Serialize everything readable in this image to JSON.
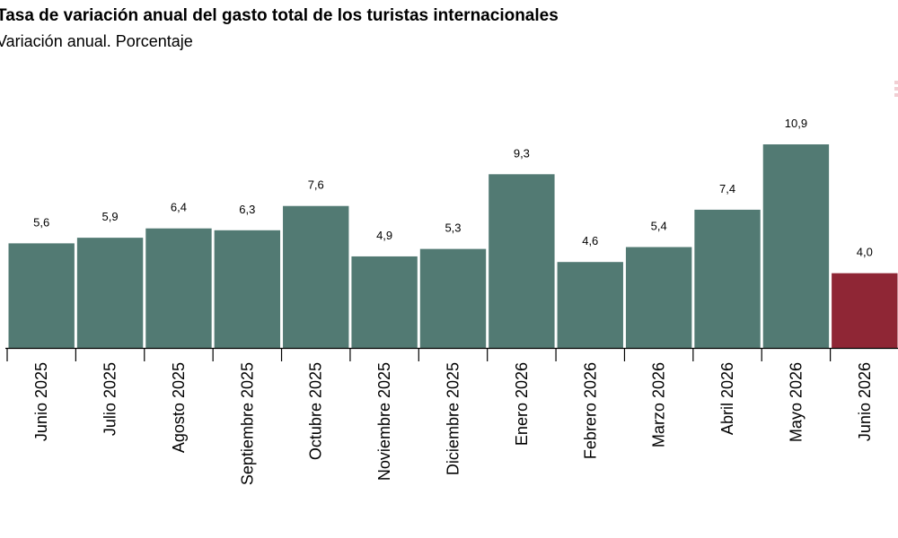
{
  "title": "Tasa de variación anual del gasto total de los turistas internacionales",
  "subtitle": "Variación anual. Porcentaje",
  "colors": {
    "bar": "#527a73",
    "highlight": "#8f2635",
    "axis": "#000000"
  },
  "icons": {
    "menu": "vertical-dots-icon"
  },
  "chart_data": {
    "type": "bar",
    "categories": [
      "Junio 2025",
      "Julio 2025",
      "Agosto 2025",
      "Septiembre 2025",
      "Octubre 2025",
      "Noviembre 2025",
      "Diciembre 2025",
      "Enero 2026",
      "Febrero 2026",
      "Marzo 2026",
      "Abril 2026",
      "Mayo 2026",
      "Junio 2026"
    ],
    "values": [
      5.6,
      5.9,
      6.4,
      6.3,
      7.6,
      4.9,
      5.3,
      9.3,
      4.6,
      5.4,
      7.4,
      10.9,
      4.0
    ],
    "value_labels": [
      "5,6",
      "5,9",
      "6,4",
      "6,3",
      "7,6",
      "4,9",
      "5,3",
      "9,3",
      "4,6",
      "5,4",
      "7,4",
      "10,9",
      "4,0"
    ],
    "highlighted_category": "Junio 2026",
    "ylim": [
      0,
      10.9
    ],
    "grid": false,
    "legend": "none"
  }
}
